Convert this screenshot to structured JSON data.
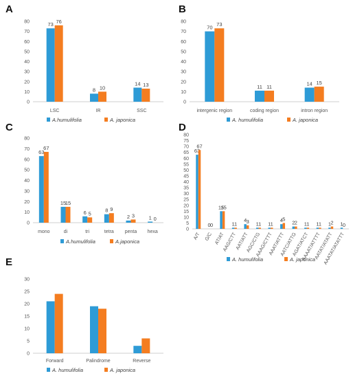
{
  "colors": {
    "series1": "#2E9BD6",
    "series2": "#F47D20",
    "axis": "#bfbfbf"
  },
  "chart_data": [
    {
      "id": "A",
      "panel_letter": "A",
      "type": "bar",
      "categories": [
        "LSC",
        "IR",
        "SSC"
      ],
      "series": [
        {
          "name": "A.humulifolia",
          "values": [
            73,
            8,
            14
          ]
        },
        {
          "name": "A. japonica",
          "values": [
            76,
            10,
            13
          ]
        }
      ],
      "ylim": [
        0,
        80
      ],
      "yticks": [
        0,
        10,
        20,
        30,
        40,
        50,
        60,
        70,
        80
      ],
      "grid": false,
      "legend": "bottom",
      "rotate_labels": false
    },
    {
      "id": "B",
      "panel_letter": "B",
      "type": "bar",
      "categories": [
        "intergenic region",
        "coding region",
        "intron region"
      ],
      "series": [
        {
          "name": "A. humulifolia",
          "values": [
            70,
            11,
            14
          ]
        },
        {
          "name": "A. japonica",
          "values": [
            73,
            11,
            15
          ]
        }
      ],
      "ylim": [
        0,
        80
      ],
      "yticks": [
        0,
        10,
        20,
        30,
        40,
        50,
        60,
        70,
        80
      ],
      "grid": false,
      "legend": "bottom",
      "rotate_labels": false
    },
    {
      "id": "C",
      "panel_letter": "C",
      "type": "bar",
      "categories": [
        "mono",
        "di",
        "tri",
        "tetra",
        "penta",
        "hexa"
      ],
      "series": [
        {
          "name": "A.humulifolia",
          "values": [
            63,
            15,
            6,
            8,
            2,
            1
          ]
        },
        {
          "name": "A.japonica",
          "values": [
            67,
            15,
            5,
            9,
            3,
            0
          ]
        }
      ],
      "ylim": [
        0,
        80
      ],
      "yticks": [
        0,
        10,
        20,
        30,
        40,
        50,
        60,
        70,
        80
      ],
      "grid": false,
      "legend": "bottom",
      "rotate_labels": false
    },
    {
      "id": "D",
      "panel_letter": "D",
      "type": "bar",
      "categories": [
        "A/T",
        "G/C",
        "AT/AT",
        "AAG/CTT",
        "AAT/ATT",
        "AGC/CTG",
        "AAAG/CTTT",
        "AAAT/ATTT",
        "AATC/ATTG",
        "AGAT/ATCT",
        "AAAAT/ATTTT",
        "AATAT/ATATT",
        "AAATAT/ATATTT"
      ],
      "series": [
        {
          "name": "A. humulifolia",
          "values": [
            63,
            0,
            15,
            1,
            4,
            1,
            1,
            4,
            2,
            1,
            1,
            1,
            1
          ]
        },
        {
          "name": "A. japonica",
          "values": [
            67,
            0,
            15,
            1,
            3,
            1,
            1,
            5,
            2,
            1,
            1,
            2,
            0
          ]
        }
      ],
      "ylim": [
        0,
        80
      ],
      "yticks": [
        0,
        5,
        10,
        15,
        20,
        25,
        30,
        35,
        40,
        45,
        50,
        55,
        60,
        65,
        70,
        75,
        80
      ],
      "grid": false,
      "legend": "bottom",
      "rotate_labels": true
    },
    {
      "id": "E",
      "panel_letter": "E",
      "type": "bar",
      "categories": [
        "Forward",
        "Palindrome",
        "Reverse"
      ],
      "series": [
        {
          "name": "A. humulifolia",
          "values": [
            21,
            19,
            3
          ]
        },
        {
          "name": "A. japonica",
          "values": [
            24,
            18,
            6
          ]
        }
      ],
      "ylim": [
        0,
        30
      ],
      "yticks": [
        0,
        5,
        10,
        15,
        20,
        25,
        30
      ],
      "grid": false,
      "legend": "bottom",
      "rotate_labels": false,
      "show_values": false
    }
  ]
}
